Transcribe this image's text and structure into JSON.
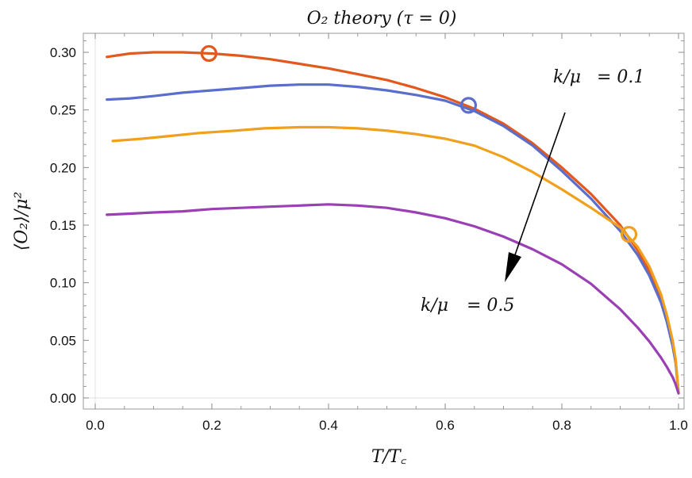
{
  "chart_data": {
    "type": "line",
    "title": "O₂ theory (τ = 0)",
    "xlabel": "T/T꜀",
    "ylabel": "⟨O₂⟩/μ²",
    "xlim": [
      0.0,
      1.0
    ],
    "ylim": [
      0.0,
      0.31
    ],
    "x_ticks": [
      "0.0",
      "0.2",
      "0.4",
      "0.6",
      "0.8",
      "1.0"
    ],
    "y_ticks": [
      "0.00",
      "0.05",
      "0.10",
      "0.15",
      "0.20",
      "0.25",
      "0.30"
    ],
    "grid": false,
    "series": [
      {
        "color": "#e2581d",
        "x": [
          0.02,
          0.06,
          0.1,
          0.15,
          0.2,
          0.25,
          0.3,
          0.35,
          0.4,
          0.45,
          0.5,
          0.55,
          0.6,
          0.65,
          0.7,
          0.75,
          0.8,
          0.85,
          0.9,
          0.93,
          0.95,
          0.97,
          0.98,
          0.99,
          0.995,
          1.0
        ],
        "y": [
          0.296,
          0.299,
          0.3,
          0.3,
          0.299,
          0.297,
          0.294,
          0.29,
          0.286,
          0.281,
          0.276,
          0.269,
          0.261,
          0.251,
          0.238,
          0.221,
          0.2,
          0.177,
          0.15,
          0.128,
          0.11,
          0.086,
          0.069,
          0.047,
          0.032,
          0.005
        ],
        "marker": {
          "x": 0.195,
          "y": 0.299
        }
      },
      {
        "color": "#5b6ecb",
        "x": [
          0.02,
          0.06,
          0.1,
          0.15,
          0.2,
          0.25,
          0.3,
          0.35,
          0.4,
          0.45,
          0.5,
          0.55,
          0.6,
          0.65,
          0.7,
          0.75,
          0.8,
          0.85,
          0.9,
          0.93,
          0.95,
          0.97,
          0.98,
          0.99,
          0.995,
          1.0
        ],
        "y": [
          0.259,
          0.26,
          0.262,
          0.265,
          0.267,
          0.269,
          0.271,
          0.272,
          0.272,
          0.27,
          0.267,
          0.263,
          0.258,
          0.249,
          0.236,
          0.219,
          0.197,
          0.173,
          0.145,
          0.124,
          0.106,
          0.083,
          0.066,
          0.045,
          0.031,
          0.005
        ],
        "marker": {
          "x": 0.64,
          "y": 0.254
        }
      },
      {
        "color": "#f0a01c",
        "x": [
          0.03,
          0.08,
          0.12,
          0.18,
          0.24,
          0.29,
          0.35,
          0.4,
          0.45,
          0.5,
          0.55,
          0.6,
          0.65,
          0.7,
          0.75,
          0.8,
          0.85,
          0.9,
          0.93,
          0.95,
          0.97,
          0.98,
          0.99,
          0.995,
          1.0
        ],
        "y": [
          0.223,
          0.225,
          0.227,
          0.23,
          0.232,
          0.234,
          0.235,
          0.235,
          0.234,
          0.232,
          0.229,
          0.225,
          0.219,
          0.209,
          0.196,
          0.181,
          0.165,
          0.148,
          0.131,
          0.114,
          0.09,
          0.072,
          0.05,
          0.034,
          0.005
        ],
        "marker": {
          "x": 0.915,
          "y": 0.142
        }
      },
      {
        "color": "#9b3fb5",
        "x": [
          0.02,
          0.06,
          0.1,
          0.15,
          0.2,
          0.25,
          0.3,
          0.35,
          0.4,
          0.45,
          0.5,
          0.55,
          0.6,
          0.65,
          0.7,
          0.75,
          0.8,
          0.85,
          0.9,
          0.93,
          0.95,
          0.97,
          0.98,
          0.99,
          0.995,
          1.0
        ],
        "y": [
          0.159,
          0.16,
          0.161,
          0.162,
          0.164,
          0.165,
          0.166,
          0.167,
          0.168,
          0.167,
          0.165,
          0.161,
          0.156,
          0.149,
          0.14,
          0.129,
          0.116,
          0.099,
          0.077,
          0.061,
          0.049,
          0.035,
          0.027,
          0.018,
          0.012,
          0.004
        ]
      }
    ],
    "annotations": [
      {
        "id": "top",
        "fraction": "k/μ",
        "value": "= 0.1"
      },
      {
        "id": "bottom",
        "fraction": "k/μ",
        "value": "= 0.5"
      }
    ]
  }
}
